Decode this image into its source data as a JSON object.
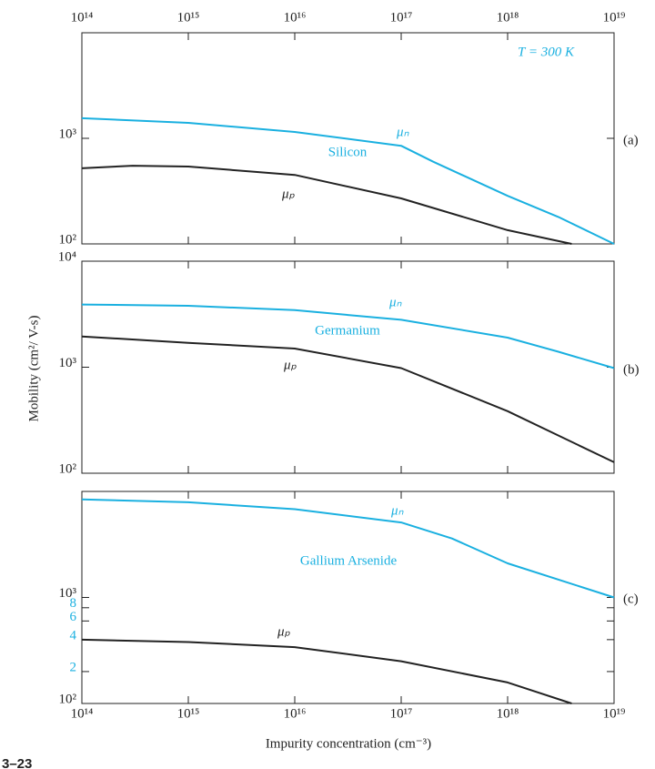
{
  "figure_label": "3–23",
  "y_label": "Mobility (cm²/ V-s)",
  "x_label": "Impurity concentration (cm⁻³)",
  "chart_data": [
    {
      "type": "line",
      "log_x": true,
      "log_y": true,
      "panel_label": "(a)",
      "material": "Silicon",
      "note": "T = 300 K",
      "xlim": [
        100000000000000.0,
        1e+19
      ],
      "ylim": [
        100,
        10000
      ],
      "xtick_labels": "top",
      "xticks": [
        {
          "value": 100000000000000.0,
          "label": "10¹⁴"
        },
        {
          "value": 1000000000000000.0,
          "label": "10¹⁵"
        },
        {
          "value": 1e+16,
          "label": "10¹⁶"
        },
        {
          "value": 1e+17,
          "label": "10¹⁷"
        },
        {
          "value": 1e+18,
          "label": "10¹⁸"
        },
        {
          "value": 1e+19,
          "label": "10¹⁹"
        }
      ],
      "yticks": [
        {
          "value": 100,
          "label": "10²"
        },
        {
          "value": 1000,
          "label": "10³"
        }
      ],
      "series": [
        {
          "name": "μₙ",
          "color": "#1ab0e0",
          "x": [
            100000000000000.0,
            1000000000000000.0,
            1e+16,
            1e+17,
            2e+17,
            1e+18,
            3e+18,
            1e+19
          ],
          "values": [
            1550,
            1400,
            1150,
            850,
            600,
            285,
            180,
            100
          ]
        },
        {
          "name": "μₚ",
          "color": "#222222",
          "x": [
            100000000000000.0,
            300000000000000.0,
            1000000000000000.0,
            1e+16,
            1e+17,
            1e+18,
            4e+18
          ],
          "values": [
            520,
            550,
            540,
            450,
            270,
            135,
            100
          ]
        }
      ]
    },
    {
      "type": "line",
      "log_x": true,
      "log_y": true,
      "panel_label": "(b)",
      "material": "Germanium",
      "xlim": [
        100000000000000.0,
        1e+19
      ],
      "ylim": [
        100,
        10000
      ],
      "xticks": [
        100000000000000.0,
        1000000000000000.0,
        1e+16,
        1e+17,
        1e+18,
        1e+19
      ],
      "yticks": [
        {
          "value": 100,
          "label": "10²"
        },
        {
          "value": 1000,
          "label": "10³"
        },
        {
          "value": 10000,
          "label": "10⁴"
        }
      ],
      "series": [
        {
          "name": "μₙ",
          "color": "#1ab0e0",
          "x": [
            100000000000000.0,
            1000000000000000.0,
            1e+16,
            1e+17,
            1e+18,
            3e+18,
            1e+19
          ],
          "values": [
            3900,
            3800,
            3450,
            2800,
            1900,
            1400,
            980
          ]
        },
        {
          "name": "μₚ",
          "color": "#222222",
          "x": [
            100000000000000.0,
            1000000000000000.0,
            1e+16,
            1e+17,
            1e+18,
            1e+19
          ],
          "values": [
            1950,
            1700,
            1500,
            980,
            385,
            127
          ]
        }
      ]
    },
    {
      "type": "line",
      "log_x": true,
      "log_y": true,
      "panel_label": "(c)",
      "material": "Gallium Arsenide",
      "xlim": [
        100000000000000.0,
        1e+19
      ],
      "ylim": [
        100,
        10000
      ],
      "xtick_labels": "bottom",
      "xticks": [
        {
          "value": 100000000000000.0,
          "label": "10¹⁴"
        },
        {
          "value": 1000000000000000.0,
          "label": "10¹⁵"
        },
        {
          "value": 1e+16,
          "label": "10¹⁶"
        },
        {
          "value": 1e+17,
          "label": "10¹⁷"
        },
        {
          "value": 1e+18,
          "label": "10¹⁸"
        },
        {
          "value": 1e+19,
          "label": "10¹⁹"
        }
      ],
      "yticks": [
        {
          "value": 100,
          "label": "10²"
        },
        {
          "value": 200,
          "label": "2",
          "color": "#1ab0e0"
        },
        {
          "value": 400,
          "label": "4",
          "color": "#1ab0e0"
        },
        {
          "value": 600,
          "label": "6",
          "color": "#1ab0e0"
        },
        {
          "value": 800,
          "label": "8",
          "color": "#1ab0e0"
        },
        {
          "value": 1000,
          "label": "10³"
        }
      ],
      "series": [
        {
          "name": "μₙ",
          "color": "#1ab0e0",
          "x": [
            100000000000000.0,
            1000000000000000.0,
            1e+16,
            1e+17,
            3e+17,
            1e+18,
            1e+19
          ],
          "values": [
            8400,
            7900,
            6800,
            5100,
            3600,
            2100,
            1000
          ]
        },
        {
          "name": "μₚ",
          "color": "#222222",
          "x": [
            100000000000000.0,
            1000000000000000.0,
            1e+16,
            1e+17,
            1e+18,
            4e+18
          ],
          "values": [
            400,
            380,
            340,
            250,
            158,
            100
          ]
        }
      ]
    }
  ]
}
